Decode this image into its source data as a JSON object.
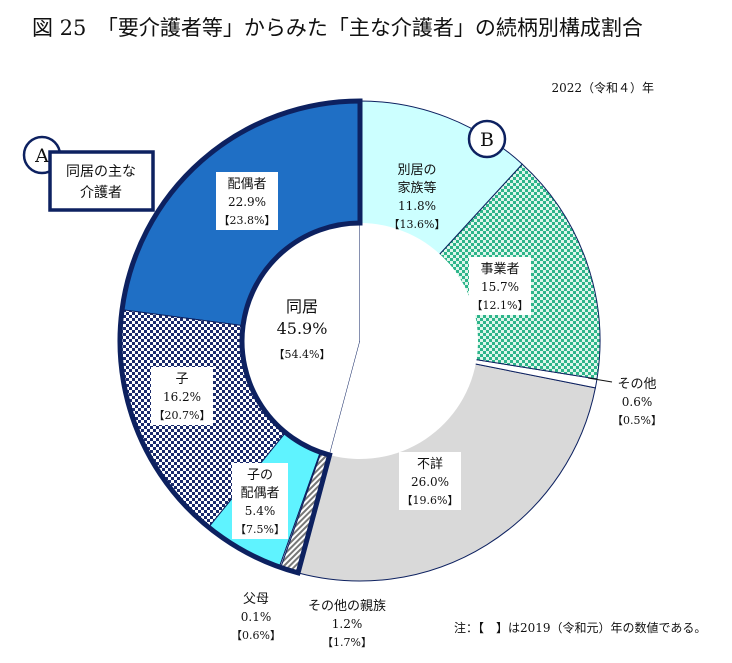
{
  "header": {
    "title": "図 25　「要介護者等」からみた「主な介護者」の続柄別構成割合",
    "year": "2022（令和４）年",
    "note": "注：【　】は2019（令和元）年の数値である。"
  },
  "callouts": {
    "a_badge": "A",
    "a_label_line1": "同居の主な",
    "a_label_line2": "介護者",
    "b_badge": "B"
  },
  "center": {
    "title": "同居",
    "value": "45.9%",
    "prev": "【54.4%】"
  },
  "colors": {
    "spouse": "#1f6fc5",
    "child": "#1a2a6b",
    "child_spouse": "#5ff3ff",
    "parent": "#ffffff",
    "other_relatives": "#9a9a9a",
    "unknown": "#d9d9d9",
    "other": "#ffffff",
    "business": "#2db58a",
    "family_apart": "#ccffff",
    "outline": "#0d2160"
  },
  "chart_data": {
    "type": "pie",
    "variant": "donut",
    "year": "2022（令和４）年",
    "slices": [
      {
        "label": "配偶者",
        "value": 22.9,
        "prev": 23.8,
        "value_text": "22.9%",
        "prev_text": "【23.8%】",
        "group": "同居"
      },
      {
        "label": "子",
        "value": 16.2,
        "prev": 20.7,
        "value_text": "16.2%",
        "prev_text": "【20.7%】",
        "group": "同居"
      },
      {
        "label": "子の配偶者",
        "value": 5.4,
        "prev": 7.5,
        "value_text": "5.4%",
        "prev_text": "【7.5%】",
        "group": "同居"
      },
      {
        "label": "父母",
        "value": 0.1,
        "prev": 0.6,
        "value_text": "0.1%",
        "prev_text": "【0.6%】",
        "group": "同居"
      },
      {
        "label": "その他の親族",
        "value": 1.2,
        "prev": 1.7,
        "value_text": "1.2%",
        "prev_text": "【1.7%】",
        "group": "同居"
      },
      {
        "label": "不詳",
        "value": 26.0,
        "prev": 19.6,
        "value_text": "26.0%",
        "prev_text": "【19.6%】"
      },
      {
        "label": "その他",
        "value": 0.6,
        "prev": 0.5,
        "value_text": "0.6%",
        "prev_text": "【0.5%】"
      },
      {
        "label": "事業者",
        "value": 15.7,
        "prev": 12.1,
        "value_text": "15.7%",
        "prev_text": "【12.1%】"
      },
      {
        "label": "別居の家族等",
        "value": 11.8,
        "prev": 13.6,
        "value_text": "11.8%",
        "prev_text": "【13.6%】"
      }
    ],
    "group_total": {
      "label": "同居",
      "value": 45.9,
      "prev": 54.4
    }
  }
}
